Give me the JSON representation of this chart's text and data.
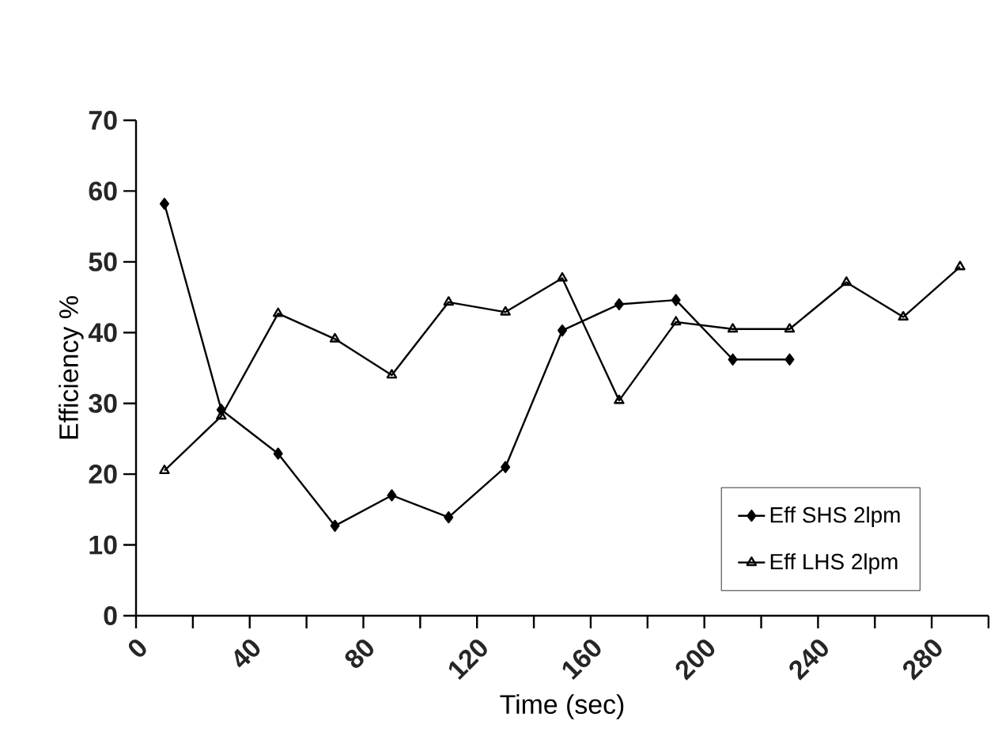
{
  "chart_data": {
    "type": "line",
    "xlabel": "Time (sec)",
    "ylabel": "Efficiency %",
    "xlim": [
      0,
      300
    ],
    "xticks": [
      0,
      {
        "value": 20,
        "label": null
      },
      40,
      {
        "value": 60,
        "label": null
      },
      80,
      {
        "value": 100,
        "label": null
      },
      120,
      {
        "value": 140,
        "label": null
      },
      160,
      {
        "value": 180,
        "label": null
      },
      200,
      {
        "value": 220,
        "label": null
      },
      240,
      {
        "value": 260,
        "label": null
      },
      280,
      {
        "value": 300,
        "label": null
      }
    ],
    "ylim": [
      0,
      70
    ],
    "yticks": [
      0,
      10,
      20,
      30,
      40,
      50,
      60,
      70
    ],
    "grid": false,
    "legend": "bottom right",
    "line_style": "solid",
    "series": [
      {
        "name": "Eff SHS 2lpm",
        "color": "#000000",
        "marker": "diamond",
        "x": [
          10,
          30,
          50,
          70,
          90,
          110,
          130,
          150,
          170,
          190,
          210,
          230
        ],
        "values": [
          58.2,
          29.1,
          22.9,
          12.7,
          17.0,
          13.9,
          21.0,
          40.3,
          44.0,
          44.6,
          36.2,
          36.2
        ]
      },
      {
        "name": "Eff LHS 2lpm",
        "color": "#000000",
        "marker": "triangle",
        "x": [
          10,
          30,
          50,
          70,
          90,
          110,
          130,
          150,
          170,
          190,
          210,
          230,
          250,
          270,
          290
        ],
        "values": [
          20.5,
          28.2,
          42.7,
          39.1,
          34.0,
          44.3,
          42.9,
          47.7,
          30.4,
          41.5,
          40.5,
          40.5,
          47.1,
          42.2,
          49.3
        ]
      }
    ]
  }
}
